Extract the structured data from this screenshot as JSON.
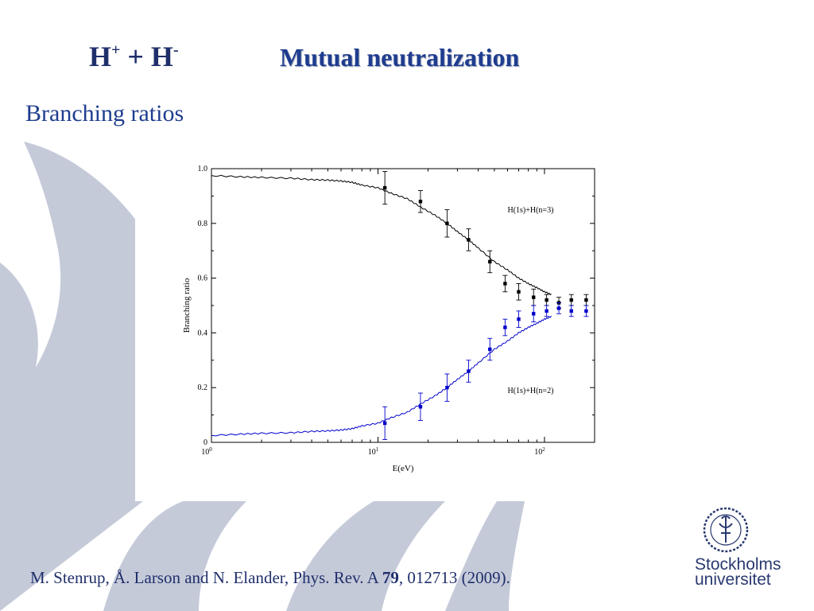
{
  "slide": {
    "formula": {
      "h": "H",
      "plus_sup": "+",
      "middle": " + H",
      "minus_sup": "-"
    },
    "title": "Mutual neutralization",
    "subtitle": "Branching ratios",
    "citation": {
      "before": "M. Stenrup, Å. Larson and N. Elander, Phys. Rev. A ",
      "volume": "79",
      "after": ", 012713 (2009)."
    },
    "logo": {
      "line1": "Stockholms",
      "line2": "universitet",
      "seal_icon": "university-seal-icon"
    }
  },
  "colors": {
    "title": "#1f3d8f",
    "background_flames": "#c5cad9",
    "series_n3": "#000000",
    "series_n2": "#0000cc"
  },
  "chart_data": {
    "type": "line",
    "xscale": "log",
    "xlim": [
      1,
      200
    ],
    "ylim": [
      0,
      1
    ],
    "xlabel": "E(eV)",
    "ylabel": "Branching ratio",
    "yticks": [
      "0",
      "0.2",
      "0.4",
      "0.6",
      "0.8",
      "1.0"
    ],
    "xticks": [
      {
        "base": "10",
        "exp": "0",
        "value": 1
      },
      {
        "base": "10",
        "exp": "1",
        "value": 10
      },
      {
        "base": "10",
        "exp": "2",
        "value": 100
      }
    ],
    "series": [
      {
        "name": "H(1s)+H(n=3)",
        "kind": "line",
        "color": "#000000",
        "x": [
          1,
          1.5,
          2,
          3,
          4,
          5,
          6,
          7,
          8,
          10,
          12,
          15,
          18,
          22,
          26,
          30,
          35,
          40,
          50,
          60,
          70,
          80,
          90,
          100,
          110
        ],
        "y": [
          0.975,
          0.97,
          0.968,
          0.965,
          0.96,
          0.958,
          0.955,
          0.95,
          0.94,
          0.93,
          0.91,
          0.89,
          0.86,
          0.83,
          0.8,
          0.77,
          0.74,
          0.71,
          0.66,
          0.63,
          0.6,
          0.58,
          0.565,
          0.55,
          0.54
        ]
      },
      {
        "name": "H(1s)+H(n=3)",
        "kind": "points",
        "color": "#000000",
        "x": [
          11,
          18,
          26,
          35,
          47,
          58,
          70,
          86,
          103,
          122,
          145,
          178
        ],
        "y": [
          0.93,
          0.88,
          0.8,
          0.74,
          0.66,
          0.58,
          0.55,
          0.53,
          0.52,
          0.51,
          0.52,
          0.52
        ],
        "err": [
          0.06,
          0.04,
          0.05,
          0.04,
          0.04,
          0.03,
          0.03,
          0.03,
          0.02,
          0.02,
          0.02,
          0.02
        ]
      },
      {
        "name": "H(1s)+H(n=2)",
        "kind": "line",
        "color": "#0000cc",
        "x": [
          1,
          1.5,
          2,
          3,
          4,
          5,
          6,
          7,
          8,
          10,
          12,
          15,
          18,
          22,
          26,
          30,
          35,
          40,
          50,
          60,
          70,
          80,
          90,
          100,
          110
        ],
        "y": [
          0.025,
          0.03,
          0.033,
          0.035,
          0.04,
          0.042,
          0.045,
          0.05,
          0.06,
          0.07,
          0.09,
          0.11,
          0.14,
          0.17,
          0.2,
          0.23,
          0.26,
          0.29,
          0.34,
          0.37,
          0.4,
          0.42,
          0.435,
          0.45,
          0.46
        ]
      },
      {
        "name": "H(1s)+H(n=2)",
        "kind": "points",
        "color": "#0000cc",
        "x": [
          11,
          18,
          26,
          35,
          47,
          58,
          70,
          86,
          103,
          122,
          145,
          178
        ],
        "y": [
          0.07,
          0.13,
          0.2,
          0.26,
          0.34,
          0.42,
          0.45,
          0.47,
          0.48,
          0.49,
          0.48,
          0.48
        ],
        "err": [
          0.06,
          0.05,
          0.05,
          0.04,
          0.04,
          0.03,
          0.03,
          0.03,
          0.02,
          0.02,
          0.02,
          0.02
        ]
      }
    ],
    "annotations": [
      {
        "text": "H(1s)+H(n=3)",
        "x": 60,
        "y": 0.84
      },
      {
        "text": "H(1s)+H(n=2)",
        "x": 60,
        "y": 0.18
      }
    ]
  }
}
